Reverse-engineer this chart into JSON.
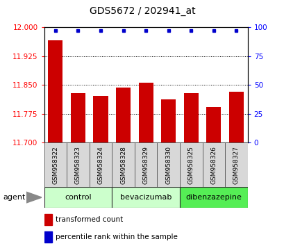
{
  "title": "GDS5672 / 202941_at",
  "samples": [
    "GSM958322",
    "GSM958323",
    "GSM958324",
    "GSM958328",
    "GSM958329",
    "GSM958330",
    "GSM958325",
    "GSM958326",
    "GSM958327"
  ],
  "transformed_counts": [
    11.965,
    11.828,
    11.822,
    11.843,
    11.855,
    11.812,
    11.828,
    11.793,
    11.833
  ],
  "percentile_ranks": [
    99,
    99,
    99,
    99,
    99,
    99,
    99,
    99,
    99
  ],
  "ylim": [
    11.7,
    12.0
  ],
  "yticks": [
    11.7,
    11.775,
    11.85,
    11.925,
    12.0
  ],
  "right_yticks": [
    0,
    25,
    50,
    75,
    100
  ],
  "right_ylim": [
    0,
    100
  ],
  "bar_color": "#cc0000",
  "dot_color": "#0000cc",
  "groups": [
    {
      "label": "control",
      "indices": [
        0,
        1,
        2
      ],
      "color": "#ccffcc"
    },
    {
      "label": "bevacizumab",
      "indices": [
        3,
        4,
        5
      ],
      "color": "#ccffcc"
    },
    {
      "label": "dibenzazepine",
      "indices": [
        6,
        7,
        8
      ],
      "color": "#55ee55"
    }
  ],
  "agent_label": "agent",
  "legend_bar_label": "transformed count",
  "legend_dot_label": "percentile rank within the sample",
  "title_fontsize": 10,
  "tick_fontsize": 7.5,
  "label_fontsize": 8,
  "sample_fontsize": 6.5,
  "grid_color": "#000000",
  "background_color": "#ffffff",
  "plot_bg_color": "#ffffff"
}
